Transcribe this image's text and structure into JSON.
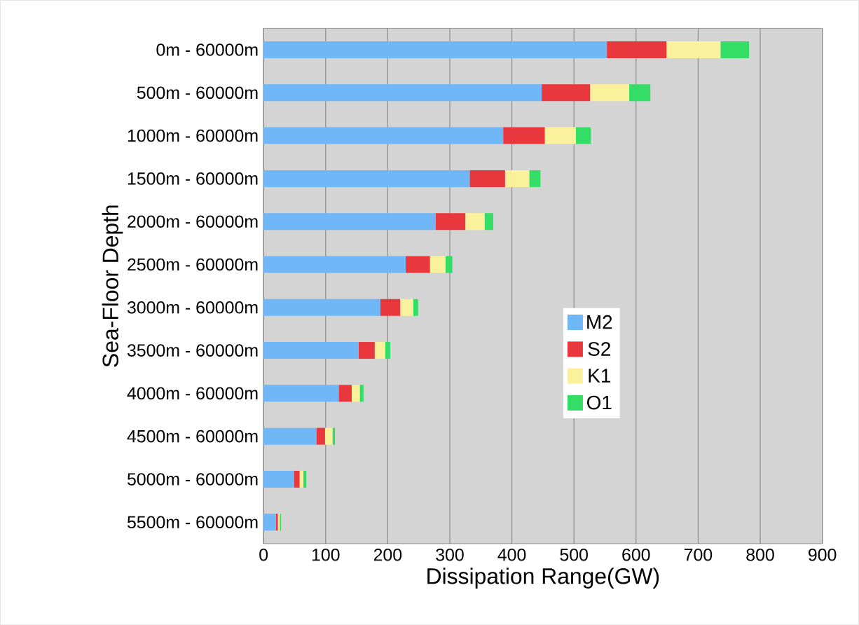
{
  "chart_data": {
    "type": "bar",
    "orientation": "horizontal",
    "stacked": true,
    "xlabel": "Dissipation Range(GW)",
    "ylabel": "Sea-Floor Depth",
    "categories": [
      "0m - 60000m",
      "500m - 60000m",
      "1000m - 60000m",
      "1500m - 60000m",
      "2000m - 60000m",
      "2500m - 60000m",
      "3000m - 60000m",
      "3500m - 60000m",
      "4000m - 60000m",
      "4500m - 60000m",
      "5000m - 60000m",
      "5500m - 60000m"
    ],
    "series": [
      {
        "name": "M2",
        "color": "#6fb7f7",
        "values": [
          553,
          448,
          386,
          332,
          277,
          229,
          188,
          153,
          121,
          85,
          49,
          20
        ]
      },
      {
        "name": "S2",
        "color": "#e8383d",
        "values": [
          96,
          78,
          67,
          57,
          48,
          39,
          32,
          26,
          21,
          14,
          9,
          3
        ]
      },
      {
        "name": "K1",
        "color": "#fbf19c",
        "values": [
          87,
          63,
          50,
          39,
          31,
          25,
          21,
          17,
          13,
          12,
          6,
          3
        ]
      },
      {
        "name": "O1",
        "color": "#33dd66",
        "values": [
          46,
          34,
          24,
          18,
          14,
          11,
          8,
          8,
          6,
          4,
          5,
          2
        ]
      }
    ],
    "xlim": [
      0,
      900
    ],
    "xticks": [
      0,
      100,
      200,
      300,
      400,
      500,
      600,
      700,
      800,
      900
    ],
    "grid": "x",
    "legend": "center"
  }
}
